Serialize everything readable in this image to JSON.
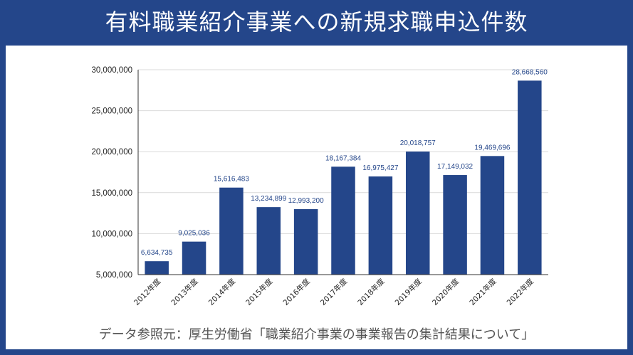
{
  "header": {
    "title": "有料職業紹介事業への新規求職申込件数"
  },
  "footer": {
    "source": "データ参照元：厚生労働省「職業紹介事業の事業報告の集計結果について」"
  },
  "colors": {
    "bar": "#24468a",
    "grid": "#d9d9d9",
    "axis": "#333333",
    "frame": "#24468a"
  },
  "chart_data": {
    "type": "bar",
    "title": "有料職業紹介事業への新規求職申込件数",
    "xlabel": "",
    "ylabel": "",
    "categories": [
      "2012年度",
      "2013年度",
      "2014年度",
      "2015年度",
      "2016年度",
      "2017年度",
      "2018年度",
      "2019年度",
      "2020年度",
      "2021年度",
      "2022年度"
    ],
    "values": [
      6634735,
      9025036,
      15616483,
      13234899,
      12993200,
      18167384,
      16975427,
      20018757,
      17149032,
      19469696,
      28668560
    ],
    "value_labels": [
      "6,634,735",
      "9,025,036",
      "15,616,483",
      "13,234,899",
      "12,993,200",
      "18,167,384",
      "16,975,427",
      "20,018,757",
      "17,149,032",
      "19,469,696",
      "28,668,560"
    ],
    "ylim": [
      5000000,
      30000000
    ],
    "yticks": [
      5000000,
      10000000,
      15000000,
      20000000,
      25000000,
      30000000
    ],
    "ytick_labels": [
      "5,000,000",
      "10,000,000",
      "15,000,000",
      "20,000,000",
      "25,000,000",
      "30,000,000"
    ],
    "grid": true,
    "legend": "none"
  }
}
